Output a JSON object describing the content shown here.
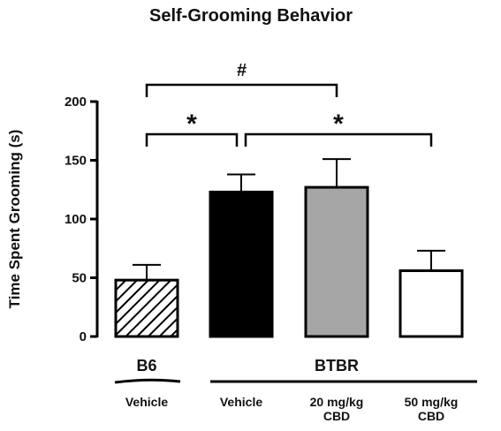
{
  "chart_data": {
    "type": "bar",
    "title": "Self-Grooming Behavior",
    "ylabel": "Time Spent Grooming (s)",
    "xlabel": "",
    "ylim": [
      0,
      200
    ],
    "yticks": [
      "0",
      "50",
      "100",
      "150",
      "200"
    ],
    "categories": [
      "Vehicle",
      "Vehicle",
      "20 mg/kg CBD",
      "50 mg/kg CBD"
    ],
    "category_lines": [
      [
        "Vehicle"
      ],
      [
        "Vehicle"
      ],
      [
        "20 mg/kg",
        "CBD"
      ],
      [
        "50 mg/kg",
        "CBD"
      ]
    ],
    "values": [
      48,
      123,
      127,
      56
    ],
    "errors": [
      13,
      15,
      24,
      17
    ],
    "fills": [
      "hatched",
      "#000000",
      "#a6a6a6",
      "#ffffff"
    ],
    "groups": [
      {
        "label": "B6",
        "members": [
          0
        ]
      },
      {
        "label": "BTBR",
        "members": [
          1,
          2,
          3
        ]
      }
    ],
    "significance": [
      {
        "from": 0,
        "to": 2,
        "label": "#",
        "level": 200
      },
      {
        "from": 0,
        "to": 1,
        "label": "*",
        "level": 175
      },
      {
        "from": 1,
        "to": 3,
        "label": "*",
        "level": 175
      }
    ]
  }
}
